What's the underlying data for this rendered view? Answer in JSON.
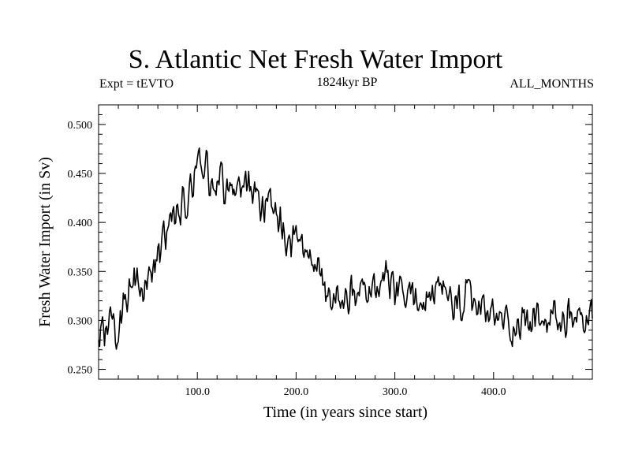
{
  "chart_data": {
    "type": "line",
    "title": "S. Atlantic Net Fresh Water Import",
    "subtitle_left": "Expt = tEVTO",
    "subtitle_center": "1824kyr BP",
    "subtitle_right": "ALL_MONTHS",
    "xlabel": "Time (in years since start)",
    "ylabel": "Fresh Water Import (in Sv)",
    "xlim": [
      0,
      500
    ],
    "ylim": [
      0.24,
      0.52
    ],
    "x_ticks": [
      100,
      200,
      300,
      400
    ],
    "x_tick_labels": [
      "100.0",
      "200.0",
      "300.0",
      "400.0"
    ],
    "y_ticks": [
      0.25,
      0.3,
      0.35,
      0.4,
      0.45,
      0.5
    ],
    "y_tick_labels": [
      "0.250",
      "0.300",
      "0.350",
      "0.400",
      "0.450",
      "0.500"
    ],
    "series": [
      {
        "name": "Fresh Water Import",
        "color": "#000000",
        "x": [
          0,
          5,
          10,
          15,
          20,
          25,
          30,
          35,
          40,
          45,
          50,
          55,
          60,
          65,
          70,
          75,
          80,
          85,
          90,
          95,
          100,
          105,
          110,
          115,
          120,
          125,
          130,
          135,
          140,
          145,
          150,
          155,
          160,
          165,
          170,
          175,
          180,
          185,
          190,
          195,
          200,
          205,
          210,
          215,
          220,
          225,
          230,
          235,
          240,
          245,
          250,
          255,
          260,
          265,
          270,
          275,
          280,
          285,
          290,
          295,
          300,
          305,
          310,
          315,
          320,
          325,
          330,
          335,
          340,
          345,
          350,
          355,
          360,
          365,
          370,
          375,
          380,
          385,
          390,
          395,
          400,
          405,
          410,
          415,
          420,
          425,
          430,
          435,
          440,
          445,
          450,
          455,
          460,
          465,
          470,
          475,
          480,
          485,
          490,
          495,
          500
        ],
        "values": [
          0.285,
          0.292,
          0.305,
          0.298,
          0.278,
          0.312,
          0.328,
          0.334,
          0.34,
          0.338,
          0.35,
          0.356,
          0.372,
          0.385,
          0.392,
          0.404,
          0.412,
          0.418,
          0.428,
          0.432,
          0.465,
          0.462,
          0.452,
          0.446,
          0.44,
          0.444,
          0.432,
          0.425,
          0.428,
          0.436,
          0.438,
          0.43,
          0.426,
          0.418,
          0.412,
          0.416,
          0.403,
          0.39,
          0.38,
          0.376,
          0.382,
          0.368,
          0.36,
          0.354,
          0.35,
          0.344,
          0.335,
          0.324,
          0.316,
          0.318,
          0.322,
          0.326,
          0.322,
          0.33,
          0.332,
          0.334,
          0.326,
          0.335,
          0.34,
          0.332,
          0.33,
          0.328,
          0.322,
          0.326,
          0.33,
          0.318,
          0.315,
          0.318,
          0.33,
          0.322,
          0.328,
          0.322,
          0.312,
          0.316,
          0.318,
          0.322,
          0.316,
          0.312,
          0.31,
          0.308,
          0.302,
          0.3,
          0.302,
          0.296,
          0.294,
          0.298,
          0.302,
          0.298,
          0.303,
          0.298,
          0.295,
          0.3,
          0.305,
          0.296,
          0.298,
          0.302,
          0.3,
          0.302,
          0.3,
          0.305,
          0.3
        ]
      }
    ]
  }
}
